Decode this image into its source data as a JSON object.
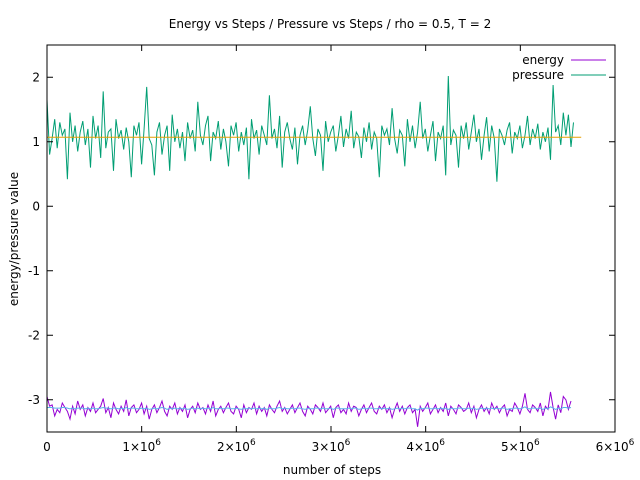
{
  "chart_data": {
    "type": "line",
    "title": "Energy vs Steps / Pressure vs Steps / rho = 0.5, T = 2",
    "xlabel": "number of steps",
    "ylabel": "energy/pressure value",
    "xlim": [
      0,
      6000000
    ],
    "ylim": [
      -3.5,
      2.5
    ],
    "grid": false,
    "legend_position": "top-right",
    "x_ticks": [
      {
        "value": 0,
        "label": "0"
      },
      {
        "value": 1000000,
        "label": "1×10^6"
      },
      {
        "value": 2000000,
        "label": "2×10^6"
      },
      {
        "value": 3000000,
        "label": "3×10^6"
      },
      {
        "value": 4000000,
        "label": "4×10^6"
      },
      {
        "value": 5000000,
        "label": "5×10^6"
      },
      {
        "value": 6000000,
        "label": "6×10^6"
      }
    ],
    "y_ticks": [
      {
        "value": 2,
        "label": "2"
      },
      {
        "value": 1,
        "label": "1"
      },
      {
        "value": 0,
        "label": "0"
      },
      {
        "value": -1,
        "label": "-1"
      },
      {
        "value": -2,
        "label": "-2"
      },
      {
        "value": -3,
        "label": "-3"
      }
    ],
    "series": [
      {
        "name": "energy",
        "color": "#9400d3",
        "x_start": 0,
        "x_step": 27000,
        "values": [
          -2.95,
          -3.1,
          -3.08,
          -3.25,
          -3.15,
          -3.2,
          -3.05,
          -3.12,
          -3.18,
          -3.3,
          -3.1,
          -3.22,
          -3.02,
          -3.15,
          -3.08,
          -3.25,
          -3.12,
          -3.18,
          -3.05,
          -3.2,
          -3.15,
          -3.1,
          -2.98,
          -3.2,
          -3.12,
          -3.28,
          -3.05,
          -3.15,
          -3.22,
          -3.1,
          -3.18,
          -3.0,
          -3.25,
          -3.12,
          -3.08,
          -3.2,
          -3.15,
          -3.05,
          -3.22,
          -3.1,
          -3.3,
          -3.15,
          -3.08,
          -3.2,
          -3.12,
          -3.02,
          -3.18,
          -3.25,
          -3.1,
          -3.15,
          -3.05,
          -3.22,
          -3.12,
          -3.18,
          -3.08,
          -3.28,
          -3.15,
          -3.1,
          -3.2,
          -3.05,
          -3.15,
          -3.12,
          -3.22,
          -3.08,
          -3.18,
          -3.02,
          -3.25,
          -3.15,
          -3.1,
          -3.2,
          -3.12,
          -3.05,
          -3.18,
          -3.22,
          -3.1,
          -3.15,
          -3.28,
          -3.08,
          -3.2,
          -3.12,
          -3.15,
          -3.05,
          -3.22,
          -3.1,
          -3.18,
          -3.12,
          -3.25,
          -3.08,
          -3.15,
          -3.2,
          -3.1,
          -3.02,
          -3.18,
          -3.12,
          -3.22,
          -3.15,
          -3.08,
          -3.2,
          -3.12,
          -3.05,
          -3.18,
          -3.25,
          -3.1,
          -3.15,
          -3.22,
          -3.08,
          -3.12,
          -3.18,
          -3.05,
          -3.2,
          -3.15,
          -3.1,
          -3.28,
          -3.12,
          -3.08,
          -3.2,
          -3.15,
          -3.22,
          -3.05,
          -3.18,
          -3.1,
          -3.12,
          -3.25,
          -3.15,
          -3.08,
          -3.2,
          -3.12,
          -3.05,
          -3.18,
          -3.22,
          -3.1,
          -3.15,
          -3.08,
          -3.2,
          -3.12,
          -3.28,
          -3.15,
          -3.05,
          -3.18,
          -3.1,
          -3.22,
          -3.12,
          -3.08,
          -3.2,
          -3.15,
          -3.42,
          -3.1,
          -3.18,
          -3.12,
          -3.05,
          -3.22,
          -3.15,
          -3.08,
          -3.2,
          -3.12,
          -3.18,
          -3.05,
          -3.25,
          -3.1,
          -3.15,
          -3.22,
          -3.08,
          -3.12,
          -3.18,
          -3.15,
          -3.05,
          -3.2,
          -3.1,
          -3.28,
          -3.15,
          -3.08,
          -3.18,
          -3.12,
          -3.22,
          -3.05,
          -3.15,
          -3.1,
          -3.2,
          -3.12,
          -3.08,
          -3.25,
          -3.15,
          -3.18,
          -3.05,
          -3.12,
          -3.22,
          -3.1,
          -2.9,
          -3.15,
          -3.2,
          -3.08,
          -3.12,
          -3.18,
          -3.05,
          -3.25,
          -3.1,
          -3.15,
          -2.88,
          -3.12,
          -3.3,
          -3.08,
          -3.2,
          -2.95,
          -3.0,
          -3.15,
          -3.02
        ]
      },
      {
        "name": "",
        "color": "#56b4e9",
        "x_start": 0,
        "x_step": 27000,
        "values": [
          -3.12,
          -3.12,
          -3.12,
          -3.13,
          -3.13,
          -3.13,
          -3.12,
          -3.12,
          -3.13,
          -3.14,
          -3.13,
          -3.14,
          -3.13,
          -3.13,
          -3.13,
          -3.14,
          -3.13,
          -3.14,
          -3.13,
          -3.14,
          -3.14,
          -3.13,
          -3.12,
          -3.13,
          -3.13,
          -3.14,
          -3.13,
          -3.13,
          -3.14,
          -3.13,
          -3.14,
          -3.12,
          -3.14,
          -3.13,
          -3.13,
          -3.14,
          -3.14,
          -3.13,
          -3.14,
          -3.13,
          -3.15,
          -3.14,
          -3.13,
          -3.14,
          -3.13,
          -3.12,
          -3.13,
          -3.15,
          -3.13,
          -3.14,
          -3.13,
          -3.14,
          -3.13,
          -3.14,
          -3.13,
          -3.15,
          -3.14,
          -3.13,
          -3.14,
          -3.13,
          -3.14,
          -3.13,
          -3.14,
          -3.13,
          -3.14,
          -3.12,
          -3.14,
          -3.14,
          -3.13,
          -3.14,
          -3.13,
          -3.13,
          -3.14,
          -3.14,
          -3.13,
          -3.14,
          -3.15,
          -3.13,
          -3.14,
          -3.13,
          -3.14,
          -3.13,
          -3.14,
          -3.13,
          -3.14,
          -3.13,
          -3.15,
          -3.13,
          -3.14,
          -3.14,
          -3.13,
          -3.12,
          -3.14,
          -3.13,
          -3.14,
          -3.14,
          -3.13,
          -3.14,
          -3.13,
          -3.13,
          -3.14,
          -3.15,
          -3.13,
          -3.14,
          -3.14,
          -3.13,
          -3.13,
          -3.14,
          -3.13,
          -3.14,
          -3.14,
          -3.13,
          -3.15,
          -3.13,
          -3.13,
          -3.14,
          -3.14,
          -3.14,
          -3.13,
          -3.14,
          -3.13,
          -3.13,
          -3.15,
          -3.14,
          -3.13,
          -3.14,
          -3.13,
          -3.13,
          -3.14,
          -3.14,
          -3.13,
          -3.14,
          -3.13,
          -3.14,
          -3.13,
          -3.15,
          -3.14,
          -3.13,
          -3.14,
          -3.13,
          -3.14,
          -3.13,
          -3.13,
          -3.14,
          -3.14,
          -3.16,
          -3.13,
          -3.14,
          -3.13,
          -3.13,
          -3.14,
          -3.14,
          -3.13,
          -3.14,
          -3.13,
          -3.14,
          -3.13,
          -3.15,
          -3.13,
          -3.14,
          -3.14,
          -3.13,
          -3.13,
          -3.14,
          -3.14,
          -3.13,
          -3.14,
          -3.13,
          -3.15,
          -3.14,
          -3.13,
          -3.14,
          -3.13,
          -3.14,
          -3.13,
          -3.14,
          -3.13,
          -3.14,
          -3.13,
          -3.13,
          -3.15,
          -3.14,
          -3.14,
          -3.13,
          -3.13,
          -3.14,
          -3.13,
          -3.11,
          -3.14,
          -3.14,
          -3.13,
          -3.13,
          -3.14,
          -3.13,
          -3.15,
          -3.13,
          -3.14,
          -3.11,
          -3.13,
          -3.15,
          -3.13,
          -3.14,
          -3.12,
          -3.12,
          -3.13,
          -3.12
        ]
      },
      {
        "name": "pressure",
        "color": "#009e73",
        "x_start": 0,
        "x_step": 27000,
        "values": [
          1.65,
          0.8,
          1.05,
          1.35,
          0.9,
          1.3,
          1.1,
          1.2,
          0.42,
          1.45,
          1.0,
          1.25,
          0.85,
          1.15,
          1.32,
          0.95,
          1.2,
          0.6,
          1.4,
          1.05,
          1.25,
          0.75,
          1.78,
          0.9,
          1.15,
          1.2,
          0.55,
          1.35,
          1.05,
          1.18,
          0.88,
          1.22,
          1.0,
          0.45,
          1.25,
          1.1,
          1.3,
          0.65,
          1.2,
          1.85,
          1.05,
          0.95,
          0.48,
          1.15,
          1.3,
          0.8,
          1.1,
          1.25,
          0.55,
          1.42,
          1.0,
          1.2,
          0.9,
          1.15,
          0.7,
          1.3,
          1.05,
          1.18,
          0.85,
          1.62,
          1.1,
          0.95,
          1.25,
          1.4,
          0.7,
          1.15,
          1.05,
          1.32,
          0.88,
          1.2,
          1.0,
          0.62,
          1.25,
          1.1,
          1.3,
          0.85,
          1.15,
          0.95,
          1.22,
          0.42,
          1.35,
          1.05,
          1.18,
          0.8,
          1.25,
          1.1,
          0.95,
          1.72,
          1.05,
          1.2,
          0.9,
          1.4,
          0.6,
          1.15,
          1.3,
          1.05,
          0.88,
          1.22,
          0.65,
          1.1,
          1.25,
          0.95,
          1.18,
          1.55,
          1.05,
          0.78,
          1.2,
          1.1,
          0.55,
          1.32,
          1.0,
          1.15,
          1.25,
          0.85,
          1.1,
          1.4,
          0.92,
          1.2,
          1.05,
          1.48,
          0.9,
          1.15,
          1.08,
          0.75,
          1.22,
          1.0,
          1.3,
          0.88,
          1.15,
          1.05,
          0.45,
          1.25,
          1.1,
          1.2,
          0.95,
          1.52,
          1.05,
          0.82,
          1.18,
          1.1,
          0.62,
          1.35,
          1.0,
          1.25,
          0.9,
          1.15,
          1.62,
          1.05,
          1.2,
          0.85,
          1.1,
          1.32,
          0.7,
          1.15,
          1.05,
          1.25,
          0.48,
          2.02,
          0.95,
          1.18,
          1.1,
          0.6,
          1.25,
          1.05,
          1.3,
          0.88,
          1.15,
          1.42,
          1.0,
          1.2,
          0.72,
          1.1,
          1.38,
          0.85,
          1.25,
          1.05,
          0.38,
          1.2,
          1.1,
          0.95,
          1.18,
          1.3,
          0.82,
          1.15,
          1.05,
          1.25,
          0.9,
          1.1,
          1.4,
          0.95,
          1.2,
          1.05,
          1.28,
          0.88,
          1.15,
          1.0,
          1.22,
          0.72,
          1.88,
          1.15,
          1.25,
          0.95,
          1.45,
          1.1,
          1.42,
          0.92,
          1.3
        ]
      },
      {
        "name": "",
        "color": "#e69f00",
        "x_start": 0,
        "x_step": 27000,
        "values": [
          1.07,
          1.07,
          1.07,
          1.07,
          1.07,
          1.07,
          1.07,
          1.07,
          1.07,
          1.07,
          1.07,
          1.07,
          1.07,
          1.07,
          1.07,
          1.07,
          1.07,
          1.07,
          1.07,
          1.07,
          1.07,
          1.07,
          1.07,
          1.07,
          1.07,
          1.07,
          1.07,
          1.07,
          1.07,
          1.07,
          1.07,
          1.07,
          1.07,
          1.07,
          1.07,
          1.07,
          1.07,
          1.07,
          1.07,
          1.07,
          1.07,
          1.07,
          1.07,
          1.07,
          1.07,
          1.07,
          1.07,
          1.07,
          1.07,
          1.07,
          1.07,
          1.07,
          1.07,
          1.07,
          1.07,
          1.07,
          1.07,
          1.07,
          1.07,
          1.07,
          1.07,
          1.07,
          1.07,
          1.07,
          1.07,
          1.07,
          1.07,
          1.07,
          1.07,
          1.07,
          1.07,
          1.07,
          1.07,
          1.07,
          1.07,
          1.07,
          1.07,
          1.07,
          1.07,
          1.07,
          1.07,
          1.07,
          1.07,
          1.07,
          1.07,
          1.07,
          1.07,
          1.07,
          1.07,
          1.07,
          1.07,
          1.07,
          1.07,
          1.07,
          1.07,
          1.07,
          1.07,
          1.07,
          1.07,
          1.07,
          1.07,
          1.07,
          1.07,
          1.07,
          1.07,
          1.07,
          1.07,
          1.07,
          1.07,
          1.07,
          1.07,
          1.07,
          1.07,
          1.07,
          1.07,
          1.07,
          1.07,
          1.07,
          1.07,
          1.07,
          1.07,
          1.07,
          1.07,
          1.07,
          1.07,
          1.07,
          1.07,
          1.07,
          1.07,
          1.07,
          1.07,
          1.07,
          1.07,
          1.07,
          1.07,
          1.07,
          1.07,
          1.07,
          1.07,
          1.07,
          1.07,
          1.07,
          1.07,
          1.07,
          1.07,
          1.07,
          1.07,
          1.07,
          1.07,
          1.07,
          1.07,
          1.07,
          1.07,
          1.07,
          1.07,
          1.07,
          1.07,
          1.07,
          1.07,
          1.07,
          1.07,
          1.07,
          1.07,
          1.07,
          1.07,
          1.07,
          1.07,
          1.07,
          1.07,
          1.07,
          1.07,
          1.07,
          1.07,
          1.07,
          1.07,
          1.07,
          1.07,
          1.07,
          1.07,
          1.07,
          1.07,
          1.07,
          1.07,
          1.07,
          1.07,
          1.07,
          1.07,
          1.07,
          1.07,
          1.07,
          1.07,
          1.07,
          1.07,
          1.07,
          1.07,
          1.07,
          1.07,
          1.07,
          1.07,
          1.07,
          1.07,
          1.07,
          1.07,
          1.07,
          1.07,
          1.07,
          1.07,
          1.07,
          1.07,
          1.07
        ]
      }
    ]
  }
}
